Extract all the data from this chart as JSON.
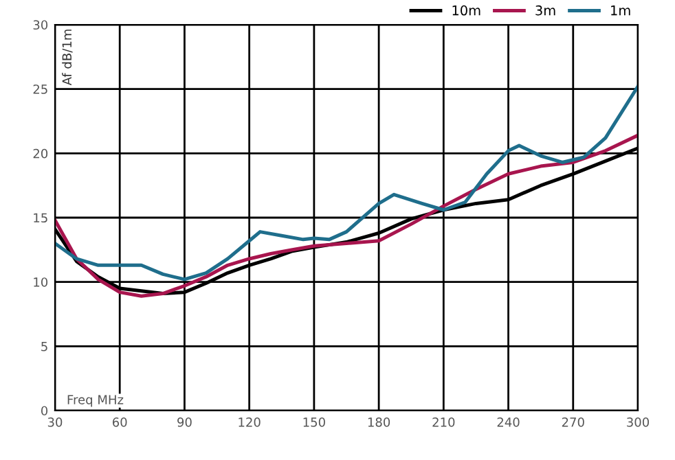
{
  "chart_data": {
    "type": "line",
    "xlabel": "Freq MHz",
    "ylabel": "Af dB/1m",
    "xlim": [
      30,
      300
    ],
    "ylim": [
      0,
      30
    ],
    "xticks": [
      30,
      60,
      90,
      120,
      150,
      180,
      210,
      240,
      270,
      300
    ],
    "yticks": [
      0,
      5,
      10,
      15,
      20,
      25,
      30
    ],
    "grid": true,
    "legend": "top right",
    "marker": "none",
    "line_style": "solid",
    "series": [
      {
        "name": "10m",
        "color": "#000000",
        "x": [
          30,
          40,
          50,
          60,
          70,
          80,
          90,
          100,
          110,
          120,
          130,
          140,
          150,
          165,
          180,
          195,
          210,
          225,
          240,
          255,
          270,
          285,
          300
        ],
        "values": [
          14.1,
          11.6,
          10.4,
          9.5,
          9.3,
          9.1,
          9.2,
          9.9,
          10.7,
          11.3,
          11.8,
          12.4,
          12.7,
          13.1,
          13.8,
          14.9,
          15.6,
          16.1,
          16.4,
          17.5,
          18.4,
          19.4,
          20.4
        ]
      },
      {
        "name": "3m",
        "color": "#a8154e",
        "x": [
          30,
          40,
          50,
          60,
          70,
          80,
          90,
          100,
          110,
          120,
          130,
          140,
          150,
          165,
          180,
          195,
          210,
          225,
          240,
          255,
          270,
          285,
          300
        ],
        "values": [
          14.8,
          11.8,
          10.2,
          9.2,
          8.9,
          9.1,
          9.7,
          10.4,
          11.3,
          11.8,
          12.2,
          12.5,
          12.8,
          13.0,
          13.2,
          14.5,
          15.9,
          17.2,
          18.4,
          19.0,
          19.3,
          20.2,
          21.4
        ]
      },
      {
        "name": "1m",
        "color": "#1f6e8c",
        "x": [
          30,
          40,
          50,
          60,
          70,
          80,
          90,
          100,
          110,
          120,
          125,
          135,
          145,
          150,
          157,
          165,
          180,
          187,
          200,
          210,
          220,
          230,
          240,
          245,
          255,
          265,
          275,
          285,
          300
        ],
        "values": [
          13.0,
          11.8,
          11.3,
          11.3,
          11.3,
          10.6,
          10.2,
          10.7,
          11.8,
          13.2,
          13.9,
          13.6,
          13.3,
          13.4,
          13.3,
          13.9,
          16.1,
          16.8,
          16.1,
          15.6,
          16.2,
          18.4,
          20.2,
          20.6,
          19.8,
          19.3,
          19.7,
          21.2,
          25.2
        ]
      }
    ]
  }
}
